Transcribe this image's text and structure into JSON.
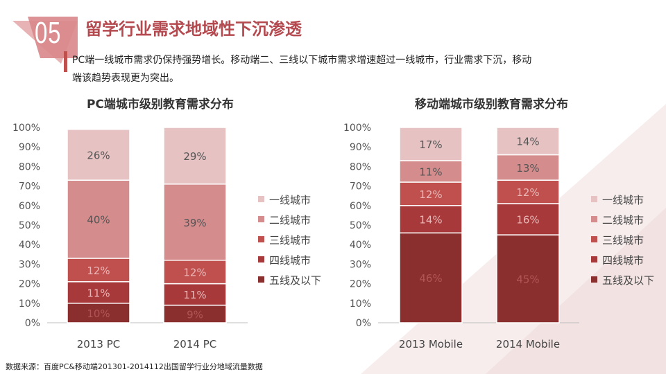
{
  "header": {
    "badge_number": "05",
    "title": "留学行业需求地域性下沉渗透",
    "lead_line1": "PC端一线城市需求仍保持强势增长。移动端二、三线以下城市需求增速超过一线城市，行业需求下沉，移动",
    "lead_line2": "端该趋势表现更为突出。"
  },
  "colors": {
    "tier1": "#e6c2c3",
    "tier2": "#d58c8d",
    "tier3": "#c0504d",
    "tier4": "#a8393a",
    "tier5": "#8b2e2e",
    "title": "#b44a4f"
  },
  "chart_data": [
    {
      "type": "bar",
      "stacked": true,
      "title": "PC端城市级别教育需求分布",
      "categories": [
        "2013 PC",
        "2014 PC"
      ],
      "series": [
        {
          "name": "五线及以下",
          "values": [
            10,
            9
          ],
          "labels": [
            "10%",
            "9%"
          ]
        },
        {
          "name": "四线城市",
          "values": [
            11,
            11
          ],
          "labels": [
            "11%",
            "11%"
          ]
        },
        {
          "name": "三线城市",
          "values": [
            12,
            12
          ],
          "labels": [
            "12%",
            "12%"
          ]
        },
        {
          "name": "二线城市",
          "values": [
            40,
            39
          ],
          "labels": [
            "40%",
            "39%"
          ]
        },
        {
          "name": "一线城市",
          "values": [
            26,
            29
          ],
          "labels": [
            "26%",
            "29%"
          ]
        }
      ],
      "ylim": [
        0,
        100
      ],
      "yticks": [
        "0%",
        "10%",
        "20%",
        "30%",
        "40%",
        "50%",
        "60%",
        "70%",
        "80%",
        "90%",
        "100%"
      ],
      "legend": [
        "一线城市",
        "二线城市",
        "三线城市",
        "四线城市",
        "五线及以下"
      ],
      "legend_position": "right"
    },
    {
      "type": "bar",
      "stacked": true,
      "title": "移动端城市级别教育需求分布",
      "categories": [
        "2013 Mobile",
        "2014 Mobile"
      ],
      "series": [
        {
          "name": "五线及以下",
          "values": [
            46,
            45
          ],
          "labels": [
            "46%",
            "45%"
          ]
        },
        {
          "name": "四线城市",
          "values": [
            14,
            16
          ],
          "labels": [
            "14%",
            "16%"
          ]
        },
        {
          "name": "三线城市",
          "values": [
            12,
            12
          ],
          "labels": [
            "12%",
            "12%"
          ]
        },
        {
          "name": "二线城市",
          "values": [
            11,
            13
          ],
          "labels": [
            "11%",
            "13%"
          ]
        },
        {
          "name": "一线城市",
          "values": [
            17,
            14
          ],
          "labels": [
            "17%",
            "14%"
          ]
        }
      ],
      "ylim": [
        0,
        100
      ],
      "yticks": [
        "0%",
        "10%",
        "20%",
        "30%",
        "40%",
        "50%",
        "60%",
        "70%",
        "80%",
        "90%",
        "100%"
      ],
      "legend": [
        "一线城市",
        "二线城市",
        "三线城市",
        "四线城市",
        "五线及以下"
      ],
      "legend_position": "right"
    }
  ],
  "footer": {
    "source": "数据来源：百度PC&移动端201301-2014112出国留学行业分地域流量数据"
  }
}
